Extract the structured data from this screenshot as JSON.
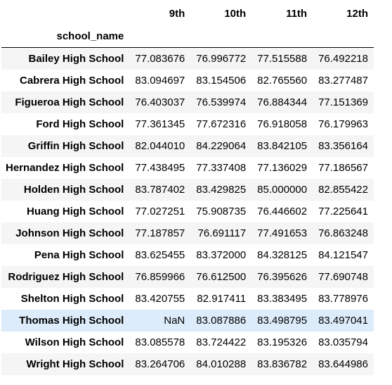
{
  "table": {
    "columns": [
      "9th",
      "10th",
      "11th",
      "12th"
    ],
    "index_name": "school_name",
    "rows": [
      {
        "school": "Bailey High School",
        "values": [
          "77.083676",
          "76.996772",
          "77.515588",
          "76.492218"
        ]
      },
      {
        "school": "Cabrera High School",
        "values": [
          "83.094697",
          "83.154506",
          "82.765560",
          "83.277487"
        ]
      },
      {
        "school": "Figueroa High School",
        "values": [
          "76.403037",
          "76.539974",
          "76.884344",
          "77.151369"
        ]
      },
      {
        "school": "Ford High School",
        "values": [
          "77.361345",
          "77.672316",
          "76.918058",
          "76.179963"
        ]
      },
      {
        "school": "Griffin High School",
        "values": [
          "82.044010",
          "84.229064",
          "83.842105",
          "83.356164"
        ]
      },
      {
        "school": "Hernandez High School",
        "values": [
          "77.438495",
          "77.337408",
          "77.136029",
          "77.186567"
        ]
      },
      {
        "school": "Holden High School",
        "values": [
          "83.787402",
          "83.429825",
          "85.000000",
          "82.855422"
        ]
      },
      {
        "school": "Huang High School",
        "values": [
          "77.027251",
          "75.908735",
          "76.446602",
          "77.225641"
        ]
      },
      {
        "school": "Johnson High School",
        "values": [
          "77.187857",
          "76.691117",
          "77.491653",
          "76.863248"
        ]
      },
      {
        "school": "Pena High School",
        "values": [
          "83.625455",
          "83.372000",
          "84.328125",
          "84.121547"
        ]
      },
      {
        "school": "Rodriguez High School",
        "values": [
          "76.859966",
          "76.612500",
          "76.395626",
          "77.690748"
        ]
      },
      {
        "school": "Shelton High School",
        "values": [
          "83.420755",
          "82.917411",
          "83.383495",
          "83.778976"
        ]
      },
      {
        "school": "Thomas High School",
        "values": [
          "NaN",
          "83.087886",
          "83.498795",
          "83.497041"
        ]
      },
      {
        "school": "Wilson High School",
        "values": [
          "83.085578",
          "83.724422",
          "83.195326",
          "83.035794"
        ]
      },
      {
        "school": "Wright High School",
        "values": [
          "83.264706",
          "84.010288",
          "83.836782",
          "83.644986"
        ]
      }
    ]
  },
  "colors": {
    "row_stripe": "#f5f5f5",
    "row_hover": "#dcecfa",
    "header_rule": "#000000"
  }
}
